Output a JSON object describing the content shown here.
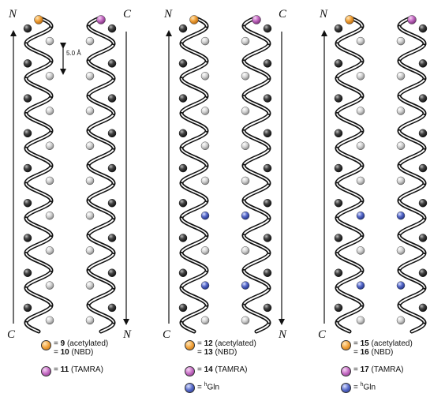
{
  "colors": {
    "orange": "#f2a23a",
    "magenta": "#c56bc4",
    "blue": "#5568c9",
    "dark": "#333333",
    "light": "#cfcfcf"
  },
  "panels": [
    {
      "id": "panel-1",
      "left_helix": {
        "top_label": "N",
        "bottom_label": "C",
        "arrow": "up"
      },
      "right_helix": {
        "top_label": "C",
        "bottom_label": "N",
        "arrow": "down"
      },
      "scale": "5.0 Å",
      "legend": [
        {
          "icon": "orange",
          "lines": [
            {
              "num": "9",
              "text": "(acetylated)"
            },
            {
              "num": "10",
              "text": "(NBD)"
            }
          ]
        },
        {
          "icon": "magenta",
          "lines": [
            {
              "num": "11",
              "text": "(TAMRA)"
            }
          ]
        }
      ]
    },
    {
      "id": "panel-2",
      "left_helix": {
        "top_label": "N",
        "bottom_label": "C",
        "arrow": "up"
      },
      "right_helix": {
        "top_label": "C",
        "bottom_label": "N",
        "arrow": "down"
      },
      "legend": [
        {
          "icon": "orange",
          "lines": [
            {
              "num": "12",
              "text": "(acetylated)"
            },
            {
              "num": "13",
              "text": "(NBD)"
            }
          ]
        },
        {
          "icon": "magenta",
          "lines": [
            {
              "num": "14",
              "text": "(TAMRA)"
            }
          ]
        },
        {
          "icon": "blue",
          "lines": [
            {
              "sup": "h",
              "text": "Gln"
            }
          ]
        }
      ]
    },
    {
      "id": "panel-3",
      "left_helix": {
        "top_label": "N",
        "bottom_label": "C",
        "arrow": "up"
      },
      "right_helix": {
        "top_label": "C",
        "bottom_label": "N",
        "arrow": "down"
      },
      "legend": [
        {
          "icon": "orange",
          "lines": [
            {
              "num": "15",
              "text": "(acetylated)"
            },
            {
              "num": "16",
              "text": "(NBD)"
            }
          ]
        },
        {
          "icon": "magenta",
          "lines": [
            {
              "num": "17",
              "text": "(TAMRA)"
            }
          ]
        },
        {
          "icon": "blue",
          "lines": [
            {
              "sup": "h",
              "text": "Gln"
            }
          ]
        }
      ]
    }
  ],
  "blue_turns": [
    [],
    [
      5,
      7
    ],
    [
      5,
      7
    ]
  ]
}
